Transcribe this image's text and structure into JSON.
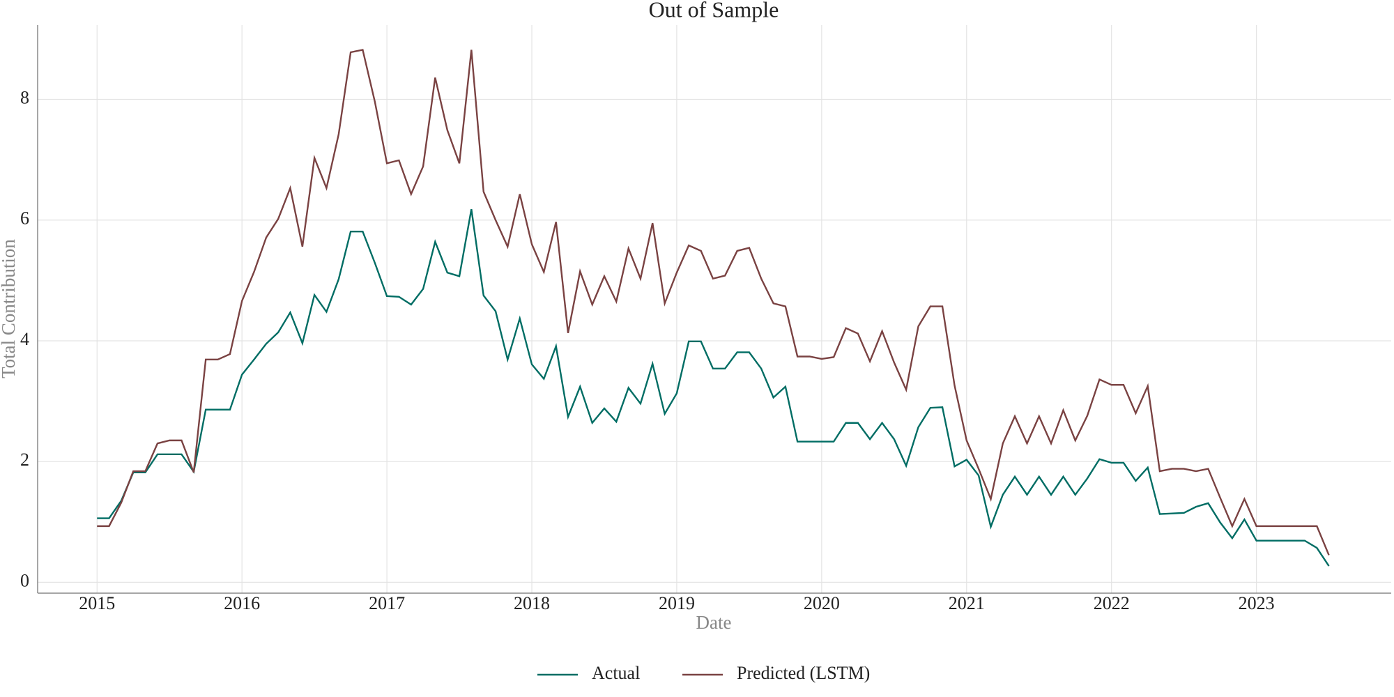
{
  "chart_data": {
    "type": "line",
    "title": "Out of Sample",
    "x_label": "Date",
    "y_label": "Total Contribution",
    "x": [
      2015,
      2015.083,
      2015.167,
      2015.25,
      2015.333,
      2015.417,
      2015.5,
      2015.583,
      2015.667,
      2015.75,
      2015.833,
      2015.917,
      2016,
      2016.083,
      2016.167,
      2016.25,
      2016.333,
      2016.417,
      2016.5,
      2016.583,
      2016.667,
      2016.75,
      2016.833,
      2016.917,
      2017,
      2017.083,
      2017.167,
      2017.25,
      2017.333,
      2017.417,
      2017.5,
      2017.583,
      2017.667,
      2017.75,
      2017.833,
      2017.917,
      2018,
      2018.083,
      2018.167,
      2018.25,
      2018.333,
      2018.417,
      2018.5,
      2018.583,
      2018.667,
      2018.75,
      2018.833,
      2018.917,
      2019,
      2019.083,
      2019.167,
      2019.25,
      2019.333,
      2019.417,
      2019.5,
      2019.583,
      2019.667,
      2019.75,
      2019.833,
      2019.917,
      2020,
      2020.083,
      2020.167,
      2020.25,
      2020.333,
      2020.417,
      2020.5,
      2020.583,
      2020.667,
      2020.75,
      2020.833,
      2020.917,
      2021,
      2021.083,
      2021.167,
      2021.25,
      2021.333,
      2021.417,
      2021.5,
      2021.583,
      2021.667,
      2021.75,
      2021.833,
      2021.917,
      2022,
      2022.083,
      2022.167,
      2022.25,
      2022.333,
      2022.417,
      2022.5,
      2022.583,
      2022.667,
      2022.75,
      2022.833,
      2022.917,
      2023,
      2023.083,
      2023.167,
      2023.25,
      2023.333,
      2023.417,
      2023.5
    ],
    "series": [
      {
        "name": "Actual",
        "color": "#006d64",
        "values": [
          1.06,
          1.06,
          1.35,
          1.82,
          1.82,
          2.12,
          2.12,
          2.12,
          1.83,
          2.86,
          2.86,
          2.86,
          3.44,
          3.69,
          3.95,
          4.14,
          4.47,
          3.96,
          4.76,
          4.48,
          5.02,
          5.81,
          5.81,
          5.29,
          4.74,
          4.73,
          4.6,
          4.86,
          5.64,
          5.13,
          5.07,
          6.18,
          4.75,
          4.49,
          3.69,
          4.37,
          3.61,
          3.37,
          3.91,
          2.74,
          3.24,
          2.64,
          2.88,
          2.66,
          3.22,
          2.96,
          3.62,
          2.79,
          3.13,
          3.99,
          3.99,
          3.54,
          3.54,
          3.81,
          3.81,
          3.54,
          3.06,
          3.24,
          2.33,
          2.33,
          2.33,
          2.33,
          2.64,
          2.64,
          2.37,
          2.64,
          2.37,
          1.93,
          2.57,
          2.89,
          2.9,
          1.92,
          2.03,
          1.77,
          0.92,
          1.45,
          1.75,
          1.45,
          1.75,
          1.45,
          1.75,
          1.45,
          1.72,
          2.04,
          1.98,
          1.98,
          1.68,
          1.9,
          1.13,
          1.14,
          1.15,
          1.25,
          1.31,
          0.99,
          0.73,
          1.04,
          0.69,
          0.69,
          0.69,
          0.69,
          0.69,
          0.57,
          0.27
        ]
      },
      {
        "name": "Predicted (LSTM)",
        "color": "#7a4242",
        "values": [
          0.93,
          0.93,
          1.32,
          1.84,
          1.84,
          2.3,
          2.35,
          2.35,
          1.82,
          3.69,
          3.69,
          3.78,
          4.66,
          5.14,
          5.71,
          6.02,
          6.53,
          5.56,
          7.03,
          6.53,
          7.42,
          8.78,
          8.82,
          7.96,
          6.94,
          6.99,
          6.43,
          6.89,
          8.36,
          7.49,
          6.94,
          8.82,
          6.47,
          6.0,
          5.56,
          6.43,
          5.6,
          5.14,
          5.97,
          4.13,
          5.15,
          4.6,
          5.07,
          4.65,
          5.53,
          5.03,
          5.95,
          4.62,
          5.13,
          5.58,
          5.49,
          5.03,
          5.08,
          5.49,
          5.54,
          5.03,
          4.62,
          4.57,
          3.74,
          3.74,
          3.7,
          3.73,
          4.21,
          4.12,
          3.66,
          4.16,
          3.64,
          3.19,
          4.24,
          4.57,
          4.57,
          3.26,
          2.35,
          1.88,
          1.38,
          2.3,
          2.75,
          2.3,
          2.75,
          2.3,
          2.85,
          2.35,
          2.76,
          3.36,
          3.27,
          3.27,
          2.8,
          3.25,
          1.84,
          1.88,
          1.88,
          1.84,
          1.88,
          1.4,
          0.93,
          1.38,
          0.93,
          0.93,
          0.93,
          0.93,
          0.93,
          0.93,
          0.45
        ]
      }
    ],
    "xlim": [
      2014.59,
      2023.93
    ],
    "xticks": [
      2015,
      2016,
      2017,
      2018,
      2019,
      2020,
      2021,
      2022,
      2023
    ],
    "ylim": [
      -0.18,
      9.23
    ],
    "yticks": [
      0,
      2,
      4,
      6,
      8
    ],
    "grid": true,
    "legend": "bottom"
  }
}
